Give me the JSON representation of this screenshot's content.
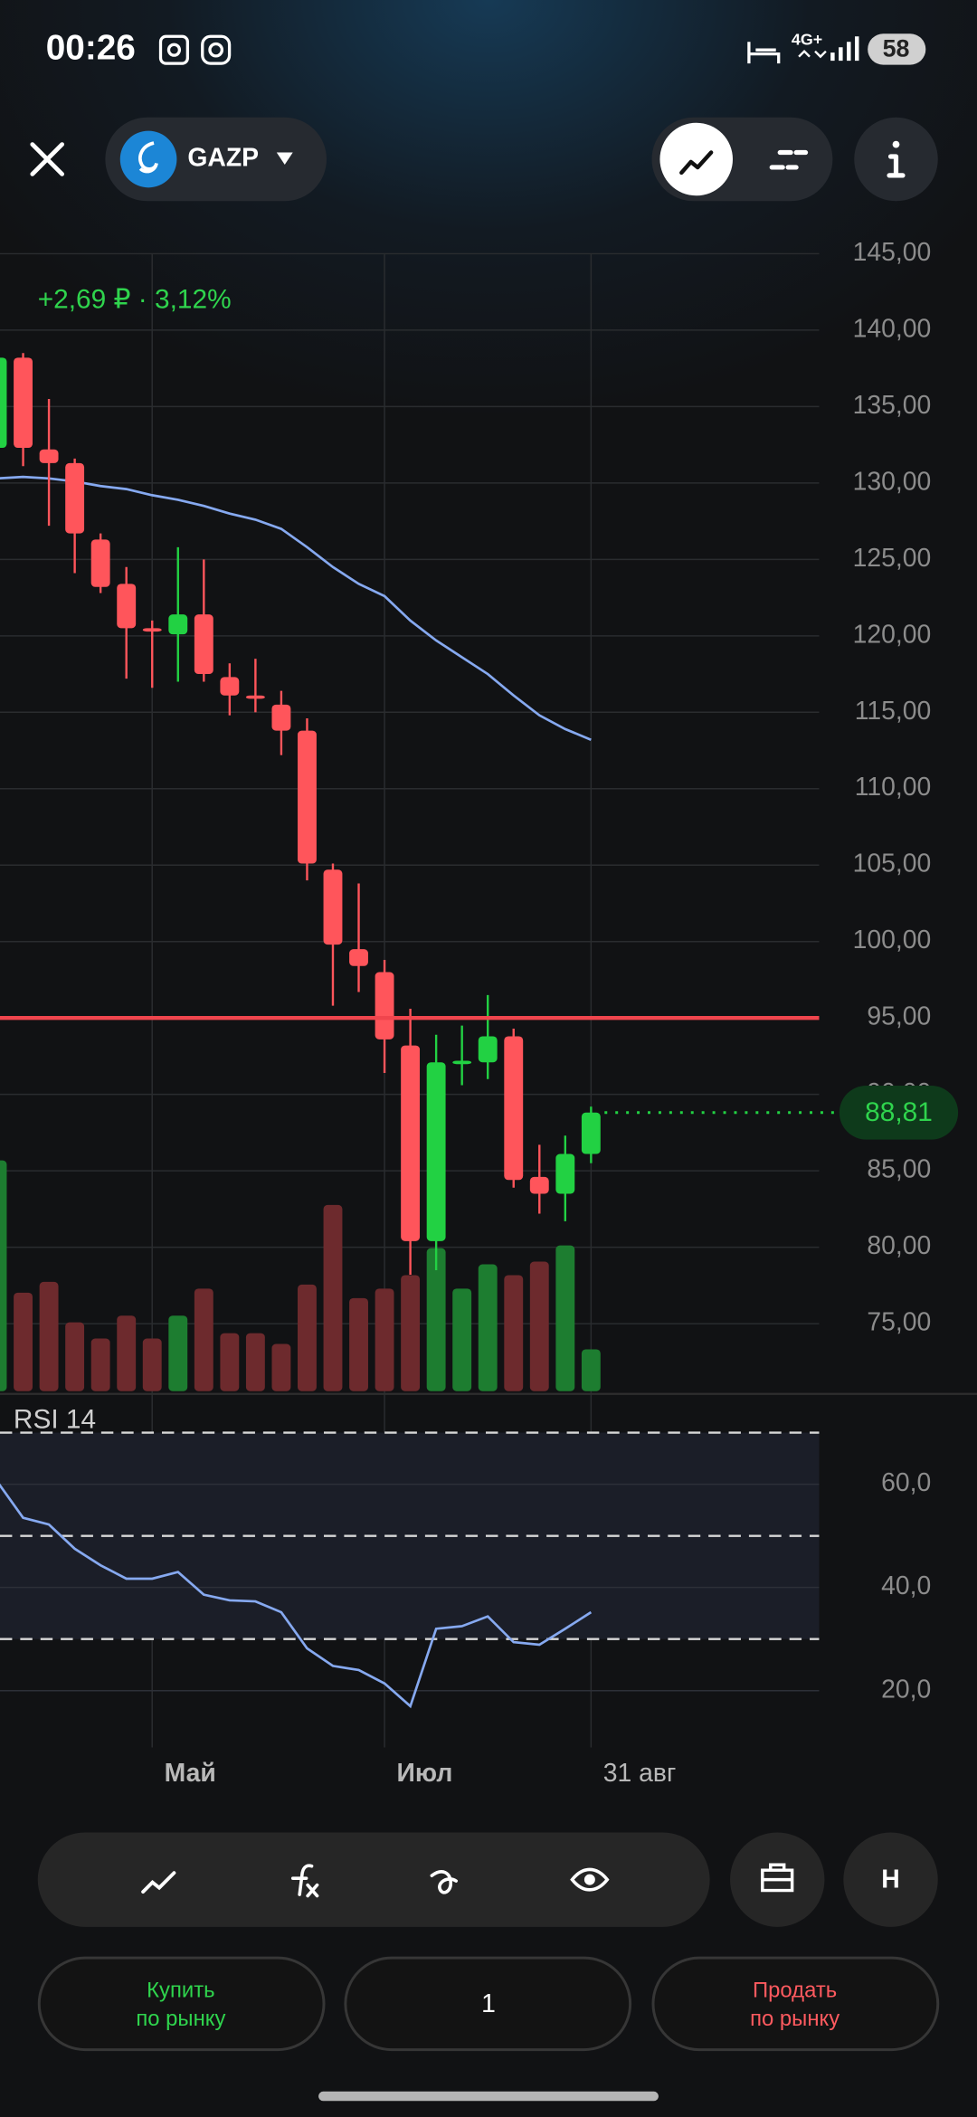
{
  "status_bar": {
    "time": "00:26",
    "network": "4G+",
    "battery": "58"
  },
  "header": {
    "ticker": "GAZP"
  },
  "chart_data": [
    {
      "type": "candlestick",
      "change_label": "+2,69 ₽ · 3,12%",
      "categories": [
        null,
        null,
        null,
        null,
        null,
        null,
        "Май",
        null,
        null,
        null,
        null,
        null,
        null,
        null,
        null,
        "Июл",
        null,
        null,
        null,
        null,
        null,
        null,
        null,
        "31 авг"
      ],
      "open": [
        132.3,
        138.2,
        132.2,
        131.3,
        126.3,
        123.4,
        120.5,
        120.1,
        121.4,
        117.3,
        116.1,
        115.5,
        113.8,
        104.7,
        99.5,
        98.0,
        93.2,
        80.4,
        92.1,
        92.1,
        93.8,
        84.6,
        83.5,
        86.1
      ],
      "high": [
        138.5,
        138.5,
        135.5,
        131.6,
        126.7,
        124.5,
        121.0,
        125.8,
        125.0,
        118.2,
        118.5,
        116.4,
        114.6,
        105.1,
        103.8,
        98.8,
        95.6,
        93.9,
        94.5,
        96.5,
        94.3,
        86.7,
        87.3,
        89.2
      ],
      "low": [
        131.0,
        131.1,
        127.2,
        124.1,
        122.8,
        117.2,
        116.6,
        117.0,
        117.0,
        114.8,
        115.0,
        112.2,
        104.0,
        95.8,
        96.7,
        91.4,
        78.2,
        78.5,
        90.6,
        91.0,
        83.9,
        82.2,
        81.7,
        85.5
      ],
      "close": [
        138.2,
        132.3,
        131.3,
        126.7,
        123.2,
        120.5,
        120.4,
        121.4,
        117.5,
        116.1,
        115.9,
        113.8,
        105.1,
        99.8,
        98.4,
        93.6,
        80.4,
        92.1,
        92.2,
        93.8,
        84.4,
        83.5,
        86.1,
        88.81
      ],
      "up_color": "#22d143",
      "down_color": "#ff555b",
      "ylim": [
        70,
        146
      ],
      "yticks": [
        {
          "value": 145,
          "label": "145,00"
        },
        {
          "value": 140,
          "label": "140,00"
        },
        {
          "value": 135,
          "label": "135,00"
        },
        {
          "value": 130,
          "label": "130,00"
        },
        {
          "value": 125,
          "label": "125,00"
        },
        {
          "value": 120,
          "label": "120,00"
        },
        {
          "value": 115,
          "label": "115,00"
        },
        {
          "value": 110,
          "label": "110,00"
        },
        {
          "value": 105,
          "label": "105,00"
        },
        {
          "value": 100,
          "label": "100,00"
        },
        {
          "value": 95,
          "label": "95,00"
        },
        {
          "value": 90,
          "label": "90,00"
        },
        {
          "value": 85,
          "label": "85,00"
        },
        {
          "value": 80,
          "label": "80,00"
        },
        {
          "value": 75,
          "label": "75,00"
        }
      ],
      "grid": true,
      "moving_average": {
        "color": "#86a9f0",
        "values": [
          130.3,
          130.4,
          130.3,
          130.1,
          129.8,
          129.6,
          129.2,
          128.9,
          128.5,
          128.0,
          127.6,
          127.0,
          125.8,
          124.5,
          123.4,
          122.6,
          121.0,
          119.7,
          118.6,
          117.5,
          116.1,
          114.8,
          113.9,
          113.2
        ]
      },
      "volume": {
        "up_color": "#1d7d30",
        "down_color": "#6d2a2d",
        "values": [
          171,
          73,
          81,
          51,
          39,
          56,
          39,
          56,
          76,
          43,
          43,
          35,
          79,
          138,
          69,
          76,
          86,
          106,
          76,
          94,
          86,
          96,
          108,
          31
        ]
      },
      "level": {
        "value": 95,
        "color": "#f0454d"
      },
      "last_price": {
        "value": 88.81,
        "label": "88,81"
      }
    },
    {
      "type": "line",
      "title": "RSI 14",
      "color": "#86a9f0",
      "values": [
        60.5,
        53.5,
        52.2,
        47.5,
        44.3,
        41.7,
        41.7,
        43.0,
        38.6,
        37.5,
        37.3,
        35.2,
        28.2,
        24.8,
        24.0,
        21.4,
        17.0,
        32.0,
        32.5,
        34.4,
        29.4,
        28.9,
        32.0,
        35.2
      ],
      "ylim": [
        10,
        75
      ],
      "yticks": [
        {
          "value": 60,
          "label": "60,0"
        },
        {
          "value": 40,
          "label": "40,0"
        },
        {
          "value": 20,
          "label": "20,0"
        }
      ],
      "levels": [
        70,
        50,
        30
      ]
    }
  ],
  "toolbar": {
    "hold_button": "Н"
  },
  "trade": {
    "buy": [
      "Купить",
      "по рынку"
    ],
    "quantity": "1",
    "sell": [
      "Продать",
      "по рынку"
    ]
  }
}
